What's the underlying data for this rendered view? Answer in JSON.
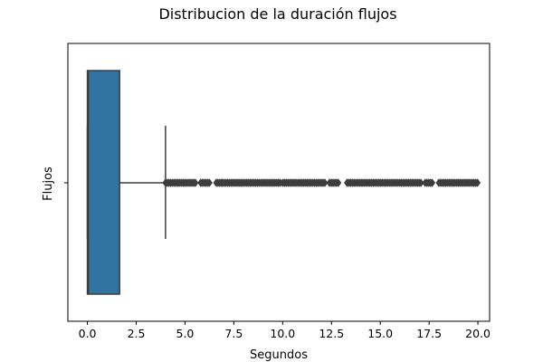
{
  "chart_data": {
    "type": "box",
    "title": "Distribucion de la duración flujos",
    "xlabel": "Segundos",
    "ylabel": "Flujos",
    "orientation": "horizontal",
    "xlim": [
      -1.0,
      20.6
    ],
    "xticks": [
      0.0,
      2.5,
      5.0,
      7.5,
      10.0,
      12.5,
      15.0,
      17.5,
      20.0
    ],
    "xtick_labels": [
      "0.0",
      "2.5",
      "5.0",
      "7.5",
      "10.0",
      "12.5",
      "15.0",
      "17.5",
      "20.0"
    ],
    "grid": false,
    "legend": "none",
    "box": {
      "whisker_low": 0.0,
      "q1": 0.0,
      "median": 0.05,
      "q3": 1.65,
      "whisker_high": 4.0,
      "fill_color": "#3274a1",
      "line_color": "#3d3d3d"
    },
    "outlier_ranges": [
      [
        4.0,
        5.6
      ],
      [
        5.8,
        6.3
      ],
      [
        6.6,
        6.9
      ],
      [
        6.9,
        9.9
      ],
      [
        10.0,
        12.2
      ],
      [
        12.4,
        12.9
      ],
      [
        13.3,
        17.1
      ],
      [
        17.3,
        17.7
      ],
      [
        18.0,
        20.05
      ]
    ]
  }
}
